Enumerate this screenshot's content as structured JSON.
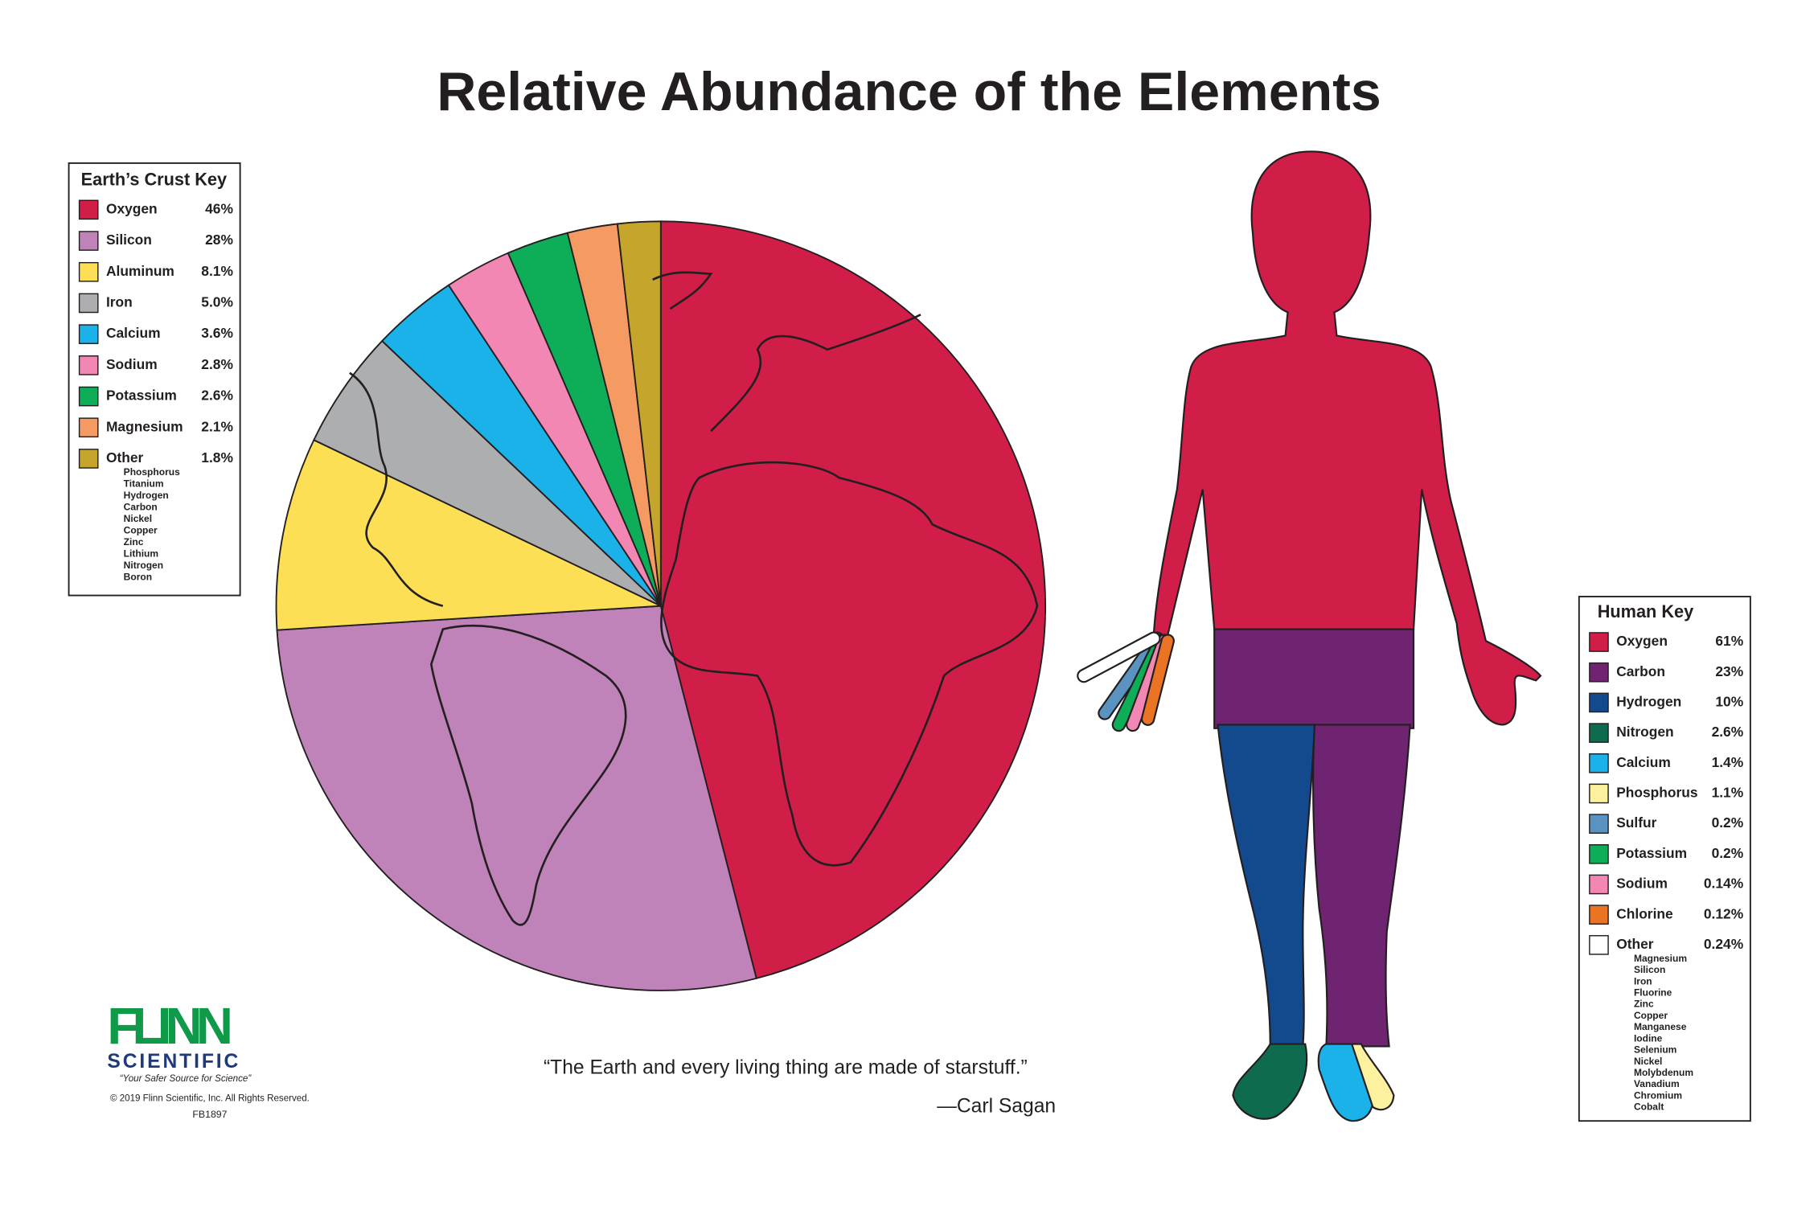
{
  "title": "Relative Abundance of the Elements",
  "chart_data": [
    {
      "type": "pie",
      "key_title": "Earth’s Crust Key",
      "categories": [
        "Oxygen",
        "Silicon",
        "Aluminum",
        "Iron",
        "Calcium",
        "Sodium",
        "Potassium",
        "Magnesium",
        "Other"
      ],
      "values": [
        46,
        28,
        8.1,
        5.0,
        3.6,
        2.8,
        2.6,
        2.1,
        1.8
      ],
      "value_labels": [
        "46%",
        "28%",
        "8.1%",
        "5.0%",
        "3.6%",
        "2.8%",
        "2.6%",
        "2.1%",
        "1.8%"
      ],
      "colors": [
        "#d11e48",
        "#bf83b9",
        "#fddf55",
        "#adaeb0",
        "#1ab2e8",
        "#f287b3",
        "#0ead58",
        "#f59a63",
        "#c6a52d"
      ],
      "other_members": [
        "Phosphorus",
        "Titanium",
        "Hydrogen",
        "Carbon",
        "Nickel",
        "Copper",
        "Zinc",
        "Lithium",
        "Nitrogen",
        "Boron"
      ]
    },
    {
      "type": "body",
      "key_title": "Human Key",
      "categories": [
        "Oxygen",
        "Carbon",
        "Hydrogen",
        "Nitrogen",
        "Calcium",
        "Phosphorus",
        "Sulfur",
        "Potassium",
        "Sodium",
        "Chlorine",
        "Other"
      ],
      "values": [
        61,
        23,
        10,
        2.6,
        1.4,
        1.1,
        0.2,
        0.2,
        0.14,
        0.12,
        0.24
      ],
      "value_labels": [
        "61%",
        "23%",
        "10%",
        "2.6%",
        "1.4%",
        "1.1%",
        "0.2%",
        "0.2%",
        "0.14%",
        "0.12%",
        "0.24%"
      ],
      "colors": [
        "#d11e48",
        "#6e2470",
        "#134a8e",
        "#0f6b4f",
        "#1ab2e8",
        "#fdf1a0",
        "#5a93c0",
        "#0ead58",
        "#f287b3",
        "#ea7424",
        "#ffffff"
      ],
      "other_members": [
        "Magnesium",
        "Silicon",
        "Iron",
        "Fluorine",
        "Zinc",
        "Copper",
        "Manganese",
        "Iodine",
        "Selenium",
        "Nickel",
        "Molybdenum",
        "Vanadium",
        "Chromium",
        "Cobalt"
      ]
    }
  ],
  "quote": "“The Earth and every living thing are made of starstuff.”",
  "attribution": "—Carl Sagan",
  "logo": {
    "name": "FLINN",
    "subname": "SCIENTIFIC",
    "tagline": "“Your Safer Source for Science”"
  },
  "copyright": "© 2019 Flinn Scientific, Inc. All Rights Reserved.",
  "code": "FB1897"
}
